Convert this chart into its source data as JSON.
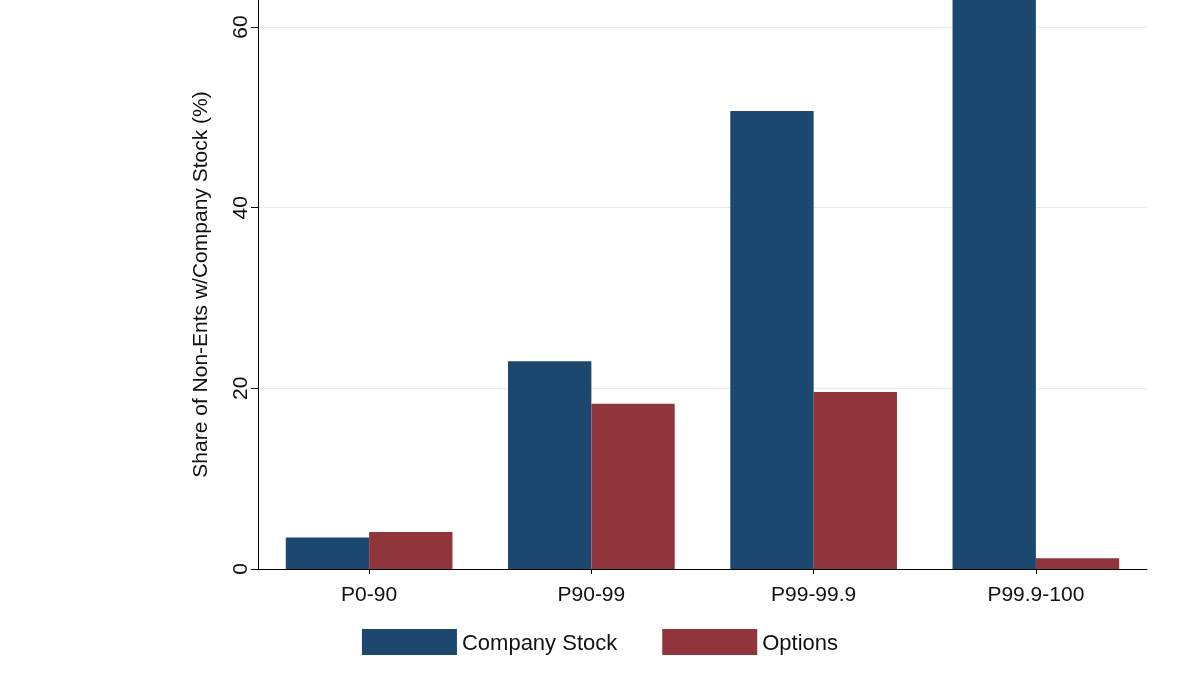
{
  "chart_data": {
    "type": "bar",
    "ylabel": "Share of Non-Ents w/Company Stock (%)",
    "categories": [
      "P0-90",
      "P90-99",
      "P99-99.9",
      "P99.9-100"
    ],
    "series": [
      {
        "name": "Company Stock",
        "color": "#1c476f",
        "values": [
          3.5,
          23.0,
          50.7,
          63
        ]
      },
      {
        "name": "Options",
        "color": "#90353b",
        "values": [
          4.1,
          18.3,
          19.6,
          1.2
        ]
      }
    ],
    "ylim": [
      0,
      63
    ],
    "yticks": [
      0,
      20,
      40,
      60
    ],
    "grid": "y",
    "legend": "bottom"
  }
}
